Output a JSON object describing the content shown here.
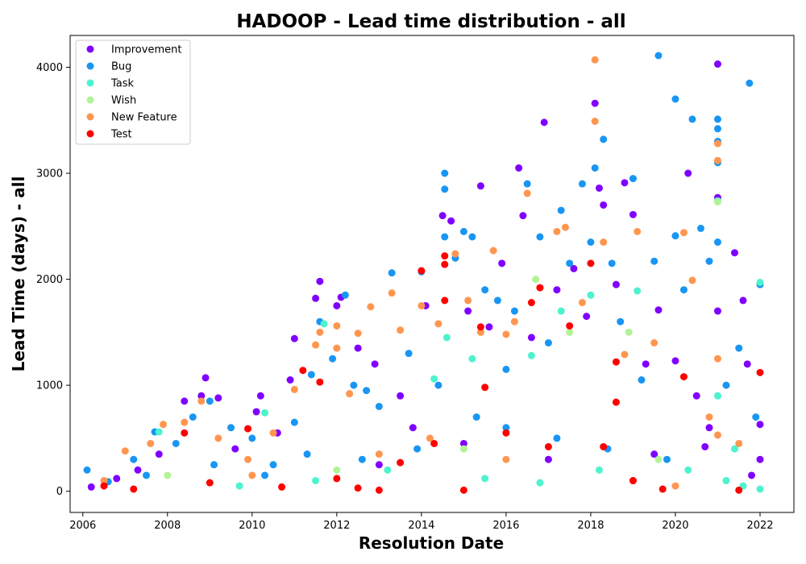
{
  "chart_data": {
    "type": "scatter",
    "title": "HADOOP - Lead time distribution - all",
    "xlabel": "Resolution Date",
    "ylabel": "Lead Time (days) - all",
    "xlim": [
      2005.7,
      2022.8
    ],
    "ylim": [
      -200,
      4300
    ],
    "x_ticks": [
      2006,
      2008,
      2010,
      2012,
      2014,
      2016,
      2018,
      2020,
      2022
    ],
    "x_tick_labels": [
      "2006",
      "2008",
      "2010",
      "2012",
      "2014",
      "2016",
      "2018",
      "2020",
      "2022"
    ],
    "y_ticks": [
      0,
      1000,
      2000,
      3000,
      4000
    ],
    "y_tick_labels": [
      "0",
      "1000",
      "2000",
      "3000",
      "4000"
    ],
    "grid": false,
    "legend_position": "upper-left",
    "series": [
      {
        "name": "Improvement",
        "color": "#8000ff",
        "points": [
          [
            2006.2,
            40
          ],
          [
            2006.8,
            120
          ],
          [
            2007.3,
            200
          ],
          [
            2007.8,
            350
          ],
          [
            2008.4,
            850
          ],
          [
            2008.8,
            900
          ],
          [
            2008.9,
            1070
          ],
          [
            2009.2,
            880
          ],
          [
            2009.6,
            400
          ],
          [
            2010.1,
            750
          ],
          [
            2010.2,
            900
          ],
          [
            2010.6,
            550
          ],
          [
            2010.9,
            1050
          ],
          [
            2011.0,
            1440
          ],
          [
            2011.5,
            1820
          ],
          [
            2011.6,
            1980
          ],
          [
            2012.0,
            1750
          ],
          [
            2012.1,
            1830
          ],
          [
            2012.5,
            1350
          ],
          [
            2012.9,
            1200
          ],
          [
            2013.5,
            900
          ],
          [
            2013.8,
            600
          ],
          [
            2014.1,
            1750
          ],
          [
            2014.5,
            2600
          ],
          [
            2014.7,
            2550
          ],
          [
            2015.1,
            1700
          ],
          [
            2015.4,
            2880
          ],
          [
            2015.6,
            1550
          ],
          [
            2015.9,
            2150
          ],
          [
            2016.3,
            3050
          ],
          [
            2016.4,
            2600
          ],
          [
            2016.6,
            1450
          ],
          [
            2016.9,
            3480
          ],
          [
            2017.2,
            1900
          ],
          [
            2017.6,
            2100
          ],
          [
            2017.9,
            1650
          ],
          [
            2018.1,
            3660
          ],
          [
            2018.2,
            2860
          ],
          [
            2018.3,
            2700
          ],
          [
            2018.6,
            1950
          ],
          [
            2018.8,
            2910
          ],
          [
            2019.0,
            2610
          ],
          [
            2019.3,
            1200
          ],
          [
            2019.6,
            1710
          ],
          [
            2020.0,
            1230
          ],
          [
            2020.3,
            3000
          ],
          [
            2020.5,
            900
          ],
          [
            2020.8,
            600
          ],
          [
            2021.0,
            4030
          ],
          [
            2021.0,
            2770
          ],
          [
            2021.0,
            1700
          ],
          [
            2021.4,
            2250
          ],
          [
            2021.6,
            1800
          ],
          [
            2021.7,
            1200
          ],
          [
            2022.0,
            630
          ],
          [
            2022.0,
            300
          ],
          [
            2017.0,
            300
          ],
          [
            2015.0,
            450
          ],
          [
            2013.0,
            250
          ],
          [
            2019.5,
            350
          ],
          [
            2020.7,
            420
          ],
          [
            2021.8,
            150
          ]
        ]
      },
      {
        "name": "Bug",
        "color": "#1996f3",
        "points": [
          [
            2006.1,
            200
          ],
          [
            2006.6,
            90
          ],
          [
            2007.2,
            300
          ],
          [
            2007.7,
            560
          ],
          [
            2008.2,
            450
          ],
          [
            2008.6,
            700
          ],
          [
            2009.0,
            850
          ],
          [
            2009.5,
            600
          ],
          [
            2010.0,
            500
          ],
          [
            2010.5,
            250
          ],
          [
            2011.0,
            650
          ],
          [
            2011.4,
            1100
          ],
          [
            2011.6,
            1600
          ],
          [
            2011.9,
            1250
          ],
          [
            2012.2,
            1850
          ],
          [
            2012.4,
            1000
          ],
          [
            2012.7,
            950
          ],
          [
            2013.0,
            800
          ],
          [
            2013.3,
            2060
          ],
          [
            2013.7,
            1300
          ],
          [
            2014.0,
            2070
          ],
          [
            2014.4,
            1000
          ],
          [
            2014.55,
            3000
          ],
          [
            2014.55,
            2850
          ],
          [
            2014.55,
            2400
          ],
          [
            2014.8,
            2200
          ],
          [
            2015.0,
            2450
          ],
          [
            2015.2,
            2400
          ],
          [
            2015.5,
            1900
          ],
          [
            2015.8,
            1800
          ],
          [
            2016.0,
            1150
          ],
          [
            2016.2,
            1700
          ],
          [
            2016.5,
            2900
          ],
          [
            2016.8,
            2400
          ],
          [
            2017.0,
            1400
          ],
          [
            2017.3,
            2650
          ],
          [
            2017.5,
            2150
          ],
          [
            2017.8,
            2900
          ],
          [
            2018.0,
            2350
          ],
          [
            2018.1,
            3050
          ],
          [
            2018.3,
            3320
          ],
          [
            2018.5,
            2150
          ],
          [
            2018.7,
            1600
          ],
          [
            2019.0,
            2950
          ],
          [
            2019.2,
            1050
          ],
          [
            2019.5,
            2170
          ],
          [
            2019.6,
            4110
          ],
          [
            2020.0,
            3700
          ],
          [
            2020.0,
            2410
          ],
          [
            2020.2,
            1900
          ],
          [
            2020.4,
            3510
          ],
          [
            2020.6,
            2480
          ],
          [
            2020.8,
            2170
          ],
          [
            2021.0,
            3510
          ],
          [
            2021.0,
            3420
          ],
          [
            2021.0,
            3300
          ],
          [
            2021.0,
            3100
          ],
          [
            2021.0,
            2350
          ],
          [
            2021.2,
            1000
          ],
          [
            2021.5,
            1350
          ],
          [
            2021.75,
            3850
          ],
          [
            2021.9,
            700
          ],
          [
            2022.0,
            1950
          ],
          [
            2016.0,
            600
          ],
          [
            2017.2,
            500
          ],
          [
            2018.4,
            400
          ],
          [
            2019.8,
            300
          ],
          [
            2015.3,
            700
          ],
          [
            2013.9,
            400
          ],
          [
            2012.6,
            300
          ],
          [
            2011.3,
            350
          ],
          [
            2010.3,
            150
          ],
          [
            2009.1,
            250
          ],
          [
            2007.5,
            150
          ]
        ]
      },
      {
        "name": "Task",
        "color": "#4df3ce",
        "points": [
          [
            2007.8,
            560
          ],
          [
            2010.3,
            740
          ],
          [
            2011.7,
            1580
          ],
          [
            2014.3,
            1060
          ],
          [
            2014.6,
            1450
          ],
          [
            2015.2,
            1250
          ],
          [
            2016.6,
            1280
          ],
          [
            2017.3,
            1700
          ],
          [
            2018.0,
            1850
          ],
          [
            2019.1,
            1890
          ],
          [
            2020.3,
            200
          ],
          [
            2021.0,
            2740
          ],
          [
            2021.0,
            900
          ],
          [
            2021.4,
            400
          ],
          [
            2021.6,
            50
          ],
          [
            2022.0,
            1970
          ],
          [
            2022.0,
            20
          ],
          [
            2021.2,
            100
          ],
          [
            2015.5,
            120
          ],
          [
            2016.8,
            80
          ],
          [
            2018.2,
            200
          ],
          [
            2013.2,
            200
          ],
          [
            2011.5,
            100
          ],
          [
            2009.7,
            50
          ]
        ]
      },
      {
        "name": "Wish",
        "color": "#b2f396",
        "points": [
          [
            2016.7,
            2000
          ],
          [
            2017.5,
            1500
          ],
          [
            2018.9,
            1500
          ],
          [
            2021.0,
            2730
          ],
          [
            2015.0,
            400
          ],
          [
            2019.6,
            300
          ],
          [
            2008.0,
            150
          ],
          [
            2012.0,
            200
          ]
        ]
      },
      {
        "name": "New Feature",
        "color": "#ff964f",
        "points": [
          [
            2006.5,
            100
          ],
          [
            2007.0,
            380
          ],
          [
            2007.6,
            450
          ],
          [
            2007.9,
            630
          ],
          [
            2008.4,
            650
          ],
          [
            2008.8,
            850
          ],
          [
            2009.2,
            500
          ],
          [
            2009.9,
            300
          ],
          [
            2010.5,
            550
          ],
          [
            2011.0,
            960
          ],
          [
            2011.5,
            1380
          ],
          [
            2011.6,
            1500
          ],
          [
            2012.0,
            1350
          ],
          [
            2012.0,
            1560
          ],
          [
            2012.3,
            920
          ],
          [
            2012.5,
            1490
          ],
          [
            2012.8,
            1740
          ],
          [
            2013.3,
            1870
          ],
          [
            2013.5,
            1520
          ],
          [
            2014.0,
            1750
          ],
          [
            2014.4,
            1580
          ],
          [
            2014.8,
            2240
          ],
          [
            2015.1,
            1800
          ],
          [
            2015.4,
            1500
          ],
          [
            2015.7,
            2270
          ],
          [
            2016.0,
            1480
          ],
          [
            2016.2,
            1600
          ],
          [
            2016.5,
            2810
          ],
          [
            2017.2,
            2450
          ],
          [
            2017.4,
            2490
          ],
          [
            2017.8,
            1780
          ],
          [
            2018.1,
            4070
          ],
          [
            2018.1,
            3490
          ],
          [
            2018.3,
            2350
          ],
          [
            2018.8,
            1290
          ],
          [
            2019.1,
            2450
          ],
          [
            2019.5,
            1400
          ],
          [
            2020.2,
            2440
          ],
          [
            2020.4,
            1990
          ],
          [
            2020.8,
            700
          ],
          [
            2021.0,
            3280
          ],
          [
            2021.0,
            3120
          ],
          [
            2021.0,
            1250
          ],
          [
            2021.0,
            530
          ],
          [
            2021.5,
            450
          ],
          [
            2016.0,
            300
          ],
          [
            2014.2,
            500
          ],
          [
            2010.0,
            150
          ],
          [
            2013.0,
            350
          ],
          [
            2019.0,
            100
          ],
          [
            2020.0,
            50
          ]
        ]
      },
      {
        "name": "Test",
        "color": "#ff0000",
        "points": [
          [
            2006.5,
            50
          ],
          [
            2007.2,
            20
          ],
          [
            2008.4,
            550
          ],
          [
            2009.0,
            80
          ],
          [
            2009.9,
            590
          ],
          [
            2011.2,
            1140
          ],
          [
            2011.6,
            1030
          ],
          [
            2012.5,
            30
          ],
          [
            2013.5,
            270
          ],
          [
            2014.0,
            2080
          ],
          [
            2014.3,
            450
          ],
          [
            2014.55,
            2220
          ],
          [
            2014.55,
            2140
          ],
          [
            2014.55,
            1800
          ],
          [
            2015.0,
            10
          ],
          [
            2015.4,
            1550
          ],
          [
            2015.5,
            980
          ],
          [
            2016.0,
            550
          ],
          [
            2016.6,
            1780
          ],
          [
            2016.8,
            1920
          ],
          [
            2017.0,
            420
          ],
          [
            2017.5,
            1560
          ],
          [
            2018.0,
            2150
          ],
          [
            2018.3,
            420
          ],
          [
            2018.6,
            1220
          ],
          [
            2018.6,
            840
          ],
          [
            2019.0,
            100
          ],
          [
            2020.2,
            1080
          ],
          [
            2021.5,
            10
          ],
          [
            2022.0,
            1120
          ],
          [
            2019.7,
            20
          ],
          [
            2012.0,
            120
          ],
          [
            2010.7,
            40
          ],
          [
            2013.0,
            10
          ]
        ]
      }
    ]
  }
}
